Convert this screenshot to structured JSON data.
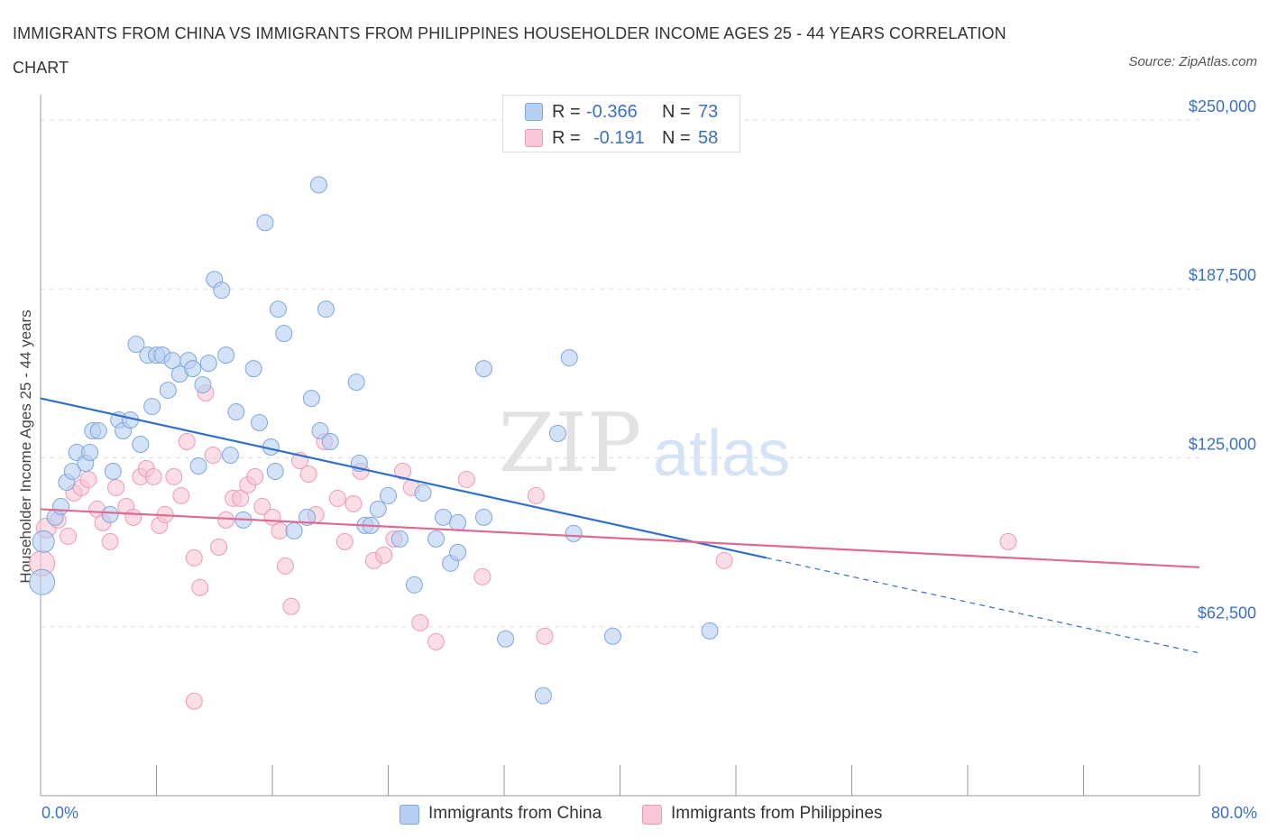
{
  "title": "IMMIGRANTS FROM CHINA VS IMMIGRANTS FROM PHILIPPINES HOUSEHOLDER INCOME AGES 25 - 44 YEARS CORRELATION CHART",
  "source": "Source: ZipAtlas.com",
  "watermark": {
    "zip": "ZIP",
    "atlas": "atlas"
  },
  "stats": {
    "china": {
      "r_label": "R =",
      "r_value": "-0.366",
      "n_label": "N =",
      "n_value": "73"
    },
    "philippines": {
      "r_label": "R =",
      "r_value": "-0.191",
      "n_label": "N =",
      "n_value": "58"
    }
  },
  "legend": {
    "china": "Immigrants from China",
    "philippines": "Immigrants from Philippines"
  },
  "colors": {
    "china_fill": "#b7cff2",
    "china_stroke": "#7ea6dd",
    "china_line": "#2f6fd0",
    "phil_fill": "#f8c6d6",
    "phil_stroke": "#eb9ab4",
    "phil_line": "#e0698f",
    "grid": "#dddddd",
    "axis_text": "#3a70c9"
  },
  "chart_data": {
    "type": "scatter",
    "title": "IMMIGRANTS FROM CHINA VS IMMIGRANTS FROM PHILIPPINES HOUSEHOLDER INCOME AGES 25 - 44 YEARS CORRELATION CHART",
    "xlabel": "",
    "ylabel": "Householder Income Ages 25 - 44 years",
    "xlim": [
      0,
      80
    ],
    "ylim": [
      0,
      256000
    ],
    "x_tick_labels": [
      "0.0%",
      "80.0%"
    ],
    "y_ticks": [
      62500,
      125000,
      187500,
      250000
    ],
    "y_tick_labels": [
      "$62,500",
      "$125,000",
      "$187,500",
      "$250,000"
    ],
    "grid": true,
    "legend_position": "bottom-center",
    "series": [
      {
        "name": "Immigrants from China",
        "points": [
          [
            0.1,
            79000,
            14
          ],
          [
            0.2,
            94000,
            12
          ],
          [
            1.0,
            103000,
            9
          ],
          [
            1.4,
            107000,
            9
          ],
          [
            1.8,
            116000,
            9
          ],
          [
            2.2,
            120000,
            9
          ],
          [
            2.5,
            127000,
            9
          ],
          [
            3.1,
            123000,
            9
          ],
          [
            3.4,
            127000,
            9
          ],
          [
            3.6,
            135000,
            9
          ],
          [
            4.0,
            135000,
            9
          ],
          [
            4.8,
            104000,
            9
          ],
          [
            5.0,
            120000,
            9
          ],
          [
            5.4,
            139000,
            9
          ],
          [
            5.7,
            135000,
            9
          ],
          [
            6.2,
            139000,
            9
          ],
          [
            6.6,
            167000,
            9
          ],
          [
            6.9,
            130000,
            9
          ],
          [
            7.4,
            163000,
            9
          ],
          [
            7.7,
            144000,
            9
          ],
          [
            8.0,
            163000,
            9
          ],
          [
            8.4,
            163000,
            9
          ],
          [
            8.8,
            150000,
            9
          ],
          [
            9.1,
            161000,
            9
          ],
          [
            9.6,
            156000,
            9
          ],
          [
            10.2,
            161000,
            9
          ],
          [
            10.5,
            158000,
            9
          ],
          [
            10.9,
            122000,
            9
          ],
          [
            11.2,
            152000,
            9
          ],
          [
            11.6,
            160000,
            9
          ],
          [
            12.0,
            191000,
            9
          ],
          [
            12.5,
            187000,
            9
          ],
          [
            12.8,
            163000,
            9
          ],
          [
            13.1,
            126000,
            9
          ],
          [
            13.5,
            142000,
            9
          ],
          [
            14.0,
            102000,
            9
          ],
          [
            14.7,
            158000,
            9
          ],
          [
            15.1,
            138000,
            9
          ],
          [
            15.5,
            212000,
            9
          ],
          [
            15.9,
            129000,
            9
          ],
          [
            16.4,
            180000,
            9
          ],
          [
            16.8,
            171000,
            9
          ],
          [
            17.5,
            98000,
            9
          ],
          [
            18.4,
            103000,
            9
          ],
          [
            18.7,
            147000,
            9
          ],
          [
            19.3,
            135000,
            9
          ],
          [
            19.7,
            180000,
            9
          ],
          [
            20.0,
            131000,
            9
          ],
          [
            21.8,
            153000,
            9
          ],
          [
            22.0,
            123000,
            9
          ],
          [
            22.4,
            100000,
            9
          ],
          [
            22.8,
            100000,
            9
          ],
          [
            23.3,
            106000,
            9
          ],
          [
            24.0,
            111000,
            9
          ],
          [
            24.8,
            95000,
            9
          ],
          [
            25.8,
            78000,
            9
          ],
          [
            26.4,
            112000,
            9
          ],
          [
            27.3,
            95000,
            9
          ],
          [
            27.8,
            103000,
            9
          ],
          [
            28.3,
            86000,
            9
          ],
          [
            28.8,
            101000,
            9
          ],
          [
            28.8,
            90000,
            9
          ],
          [
            30.6,
            158000,
            9
          ],
          [
            30.6,
            103000,
            9
          ],
          [
            32.1,
            58000,
            9
          ],
          [
            34.7,
            37000,
            9
          ],
          [
            35.7,
            134000,
            9
          ],
          [
            36.5,
            162000,
            9
          ],
          [
            36.8,
            97000,
            9
          ],
          [
            39.5,
            59000,
            9
          ],
          [
            46.2,
            61000,
            9
          ],
          [
            19.2,
            226000,
            9
          ],
          [
            16.2,
            120000,
            9
          ]
        ]
      },
      {
        "name": "Immigrants from Philippines",
        "points": [
          [
            0.1,
            86000,
            14
          ],
          [
            0.4,
            99000,
            11
          ],
          [
            1.2,
            102000,
            9
          ],
          [
            1.9,
            96000,
            9
          ],
          [
            2.3,
            112000,
            9
          ],
          [
            2.8,
            114000,
            9
          ],
          [
            3.3,
            117000,
            9
          ],
          [
            3.9,
            106000,
            9
          ],
          [
            4.3,
            101000,
            9
          ],
          [
            4.8,
            94000,
            9
          ],
          [
            5.2,
            114000,
            9
          ],
          [
            5.9,
            107000,
            9
          ],
          [
            6.4,
            103000,
            9
          ],
          [
            6.9,
            118000,
            9
          ],
          [
            7.3,
            121000,
            9
          ],
          [
            7.8,
            118000,
            9
          ],
          [
            8.2,
            100000,
            9
          ],
          [
            8.6,
            104000,
            9
          ],
          [
            9.2,
            118000,
            9
          ],
          [
            9.7,
            111000,
            9
          ],
          [
            10.1,
            131000,
            9
          ],
          [
            10.6,
            88000,
            9
          ],
          [
            11.0,
            77000,
            9
          ],
          [
            11.4,
            149000,
            9
          ],
          [
            11.9,
            126000,
            9
          ],
          [
            12.3,
            92000,
            9
          ],
          [
            12.8,
            102000,
            9
          ],
          [
            13.3,
            110000,
            9
          ],
          [
            13.8,
            110000,
            9
          ],
          [
            14.3,
            115000,
            9
          ],
          [
            14.8,
            118000,
            9
          ],
          [
            15.3,
            107000,
            9
          ],
          [
            16.0,
            103000,
            9
          ],
          [
            16.5,
            98000,
            9
          ],
          [
            16.9,
            85000,
            9
          ],
          [
            17.3,
            70000,
            9
          ],
          [
            17.9,
            124000,
            9
          ],
          [
            18.5,
            119000,
            9
          ],
          [
            19.0,
            104000,
            9
          ],
          [
            19.6,
            131000,
            9
          ],
          [
            20.5,
            110000,
            9
          ],
          [
            21.0,
            94000,
            9
          ],
          [
            21.6,
            108000,
            9
          ],
          [
            22.1,
            120000,
            9
          ],
          [
            23.0,
            87000,
            9
          ],
          [
            23.7,
            89000,
            9
          ],
          [
            24.4,
            95000,
            9
          ],
          [
            25.0,
            120000,
            9
          ],
          [
            25.6,
            114000,
            9
          ],
          [
            26.2,
            64000,
            9
          ],
          [
            27.3,
            57000,
            9
          ],
          [
            29.4,
            117000,
            9
          ],
          [
            30.5,
            81000,
            9
          ],
          [
            34.2,
            111000,
            9
          ],
          [
            34.8,
            59000,
            9
          ],
          [
            47.2,
            87000,
            9
          ],
          [
            66.8,
            94000,
            9
          ],
          [
            10.6,
            35000,
            9
          ]
        ]
      }
    ],
    "trend_lines": [
      {
        "series": "Immigrants from China",
        "x": [
          0,
          50.1
        ],
        "y": [
          147000,
          88000
        ],
        "dashed_extension_to_x": 80
      },
      {
        "series": "Immigrants from Philippines",
        "x": [
          0,
          80
        ],
        "y": [
          106000,
          84500
        ]
      }
    ]
  }
}
